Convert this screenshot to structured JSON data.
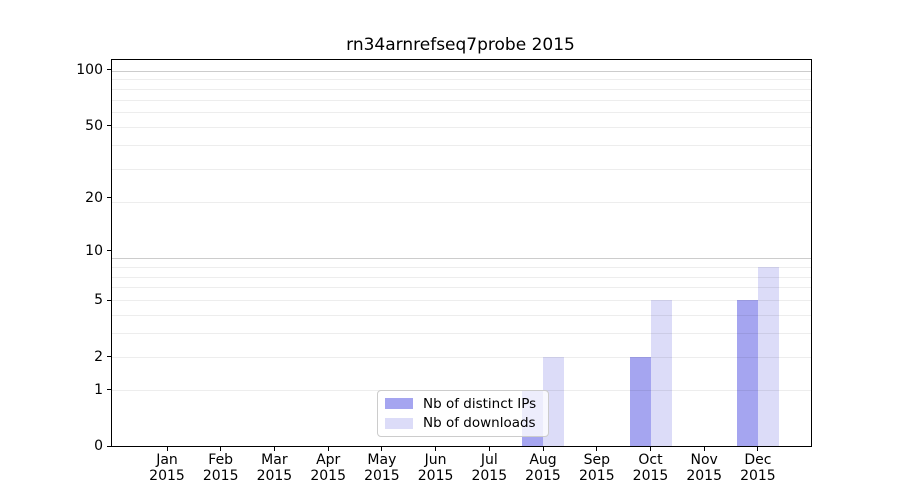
{
  "chart_data": {
    "type": "bar",
    "title": "rn34arnrefseq7probe 2015",
    "categories": [
      "Jan\n2015",
      "Feb\n2015",
      "Mar\n2015",
      "Apr\n2015",
      "May\n2015",
      "Jun\n2015",
      "Jul\n2015",
      "Aug\n2015",
      "Sep\n2015",
      "Oct\n2015",
      "Nov\n2015",
      "Dec\n2015"
    ],
    "series": [
      {
        "name": "Nb of distinct IPs",
        "color": "#a5a5f0",
        "values": [
          0,
          0,
          0,
          0,
          0,
          0,
          0,
          1,
          0,
          2,
          0,
          5
        ]
      },
      {
        "name": "Nb of downloads",
        "color": "#dcdcf8",
        "values": [
          0,
          0,
          0,
          0,
          0,
          0,
          0,
          2,
          0,
          5,
          0,
          8
        ]
      }
    ],
    "xlabel": "",
    "ylabel": "",
    "y_scale": "log10(1+value)",
    "y_ticks": [
      100,
      50,
      20,
      10,
      5,
      2,
      1,
      0
    ],
    "ylim": [
      0,
      113
    ],
    "grid": {
      "orientation": "horizontal",
      "minor_at_1_plus_v": [
        2,
        3,
        4,
        5,
        6,
        7,
        8,
        9,
        20,
        30,
        40,
        50,
        60,
        70,
        80,
        90
      ],
      "major_at_1_plus_v": [
        10,
        100
      ]
    },
    "legend_position": "lower center"
  },
  "legend": {
    "items": [
      {
        "label": "Nb of distinct IPs"
      },
      {
        "label": "Nb of downloads"
      }
    ]
  },
  "colors": {
    "bar_distinct_ips": "#a5a5f0",
    "bar_downloads": "#dcdcf8",
    "axis": "#000000",
    "legend_border": "#cccccc",
    "background": "#ffffff"
  }
}
